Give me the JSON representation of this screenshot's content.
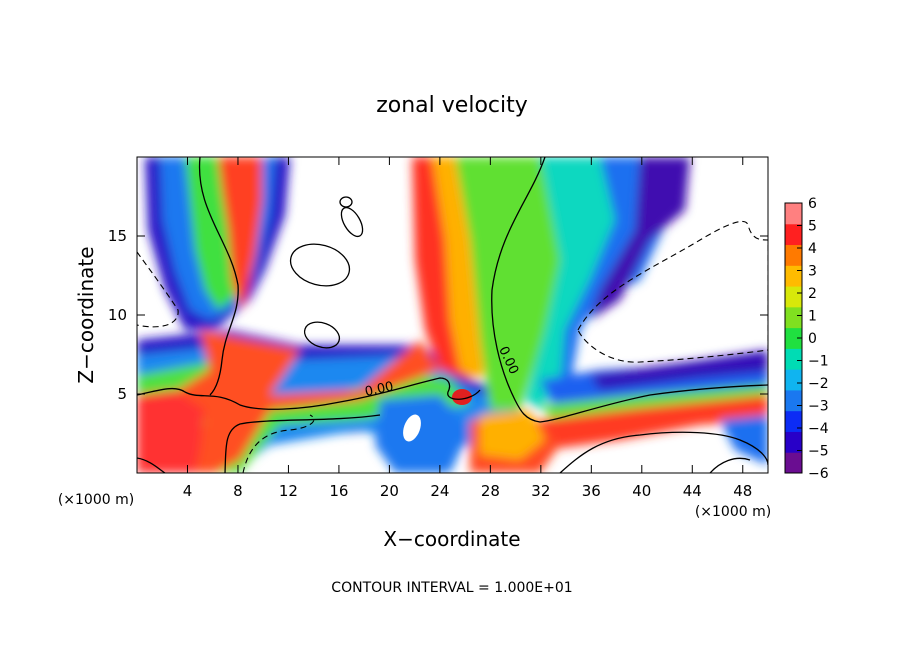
{
  "chart_data": {
    "type": "heatmap",
    "title": "zonal velocity",
    "xlabel": "X−coordinate",
    "ylabel": "Z−coordinate",
    "x_unit_left": "(×1000 m)",
    "x_unit_right": "(×1000 m)",
    "xlim": [
      0,
      50
    ],
    "ylim": [
      0,
      20
    ],
    "x_ticks": [
      4,
      8,
      12,
      16,
      20,
      24,
      28,
      32,
      36,
      40,
      44,
      48
    ],
    "x_tick_labels": [
      "4",
      "8",
      "12",
      "16",
      "20",
      "24",
      "28",
      "32",
      "36",
      "40",
      "44",
      "48"
    ],
    "y_ticks": [
      5,
      10,
      15
    ],
    "y_tick_labels": [
      "5",
      "10",
      "15"
    ],
    "colorbar": {
      "levels": [
        -6,
        -5,
        -4,
        -3,
        -2,
        -1,
        0,
        1,
        2,
        3,
        4,
        5,
        6
      ],
      "labels": [
        "6",
        "5",
        "4",
        "3",
        "2",
        "1",
        "0",
        "−1",
        "−2",
        "−3",
        "−4",
        "−5",
        "−6"
      ],
      "colors": [
        "#6a0d91",
        "#2800c8",
        "#0c2cf5",
        "#1a78f0",
        "#10b4f0",
        "#00dcb4",
        "#20e040",
        "#80e020",
        "#d8e80a",
        "#ffbb00",
        "#ff7a00",
        "#ff2020",
        "#ff8080"
      ]
    },
    "contour_labels": [
      "0.00",
      "0.00"
    ],
    "footer": "CONTOUR INTERVAL = 1.000E+01"
  }
}
